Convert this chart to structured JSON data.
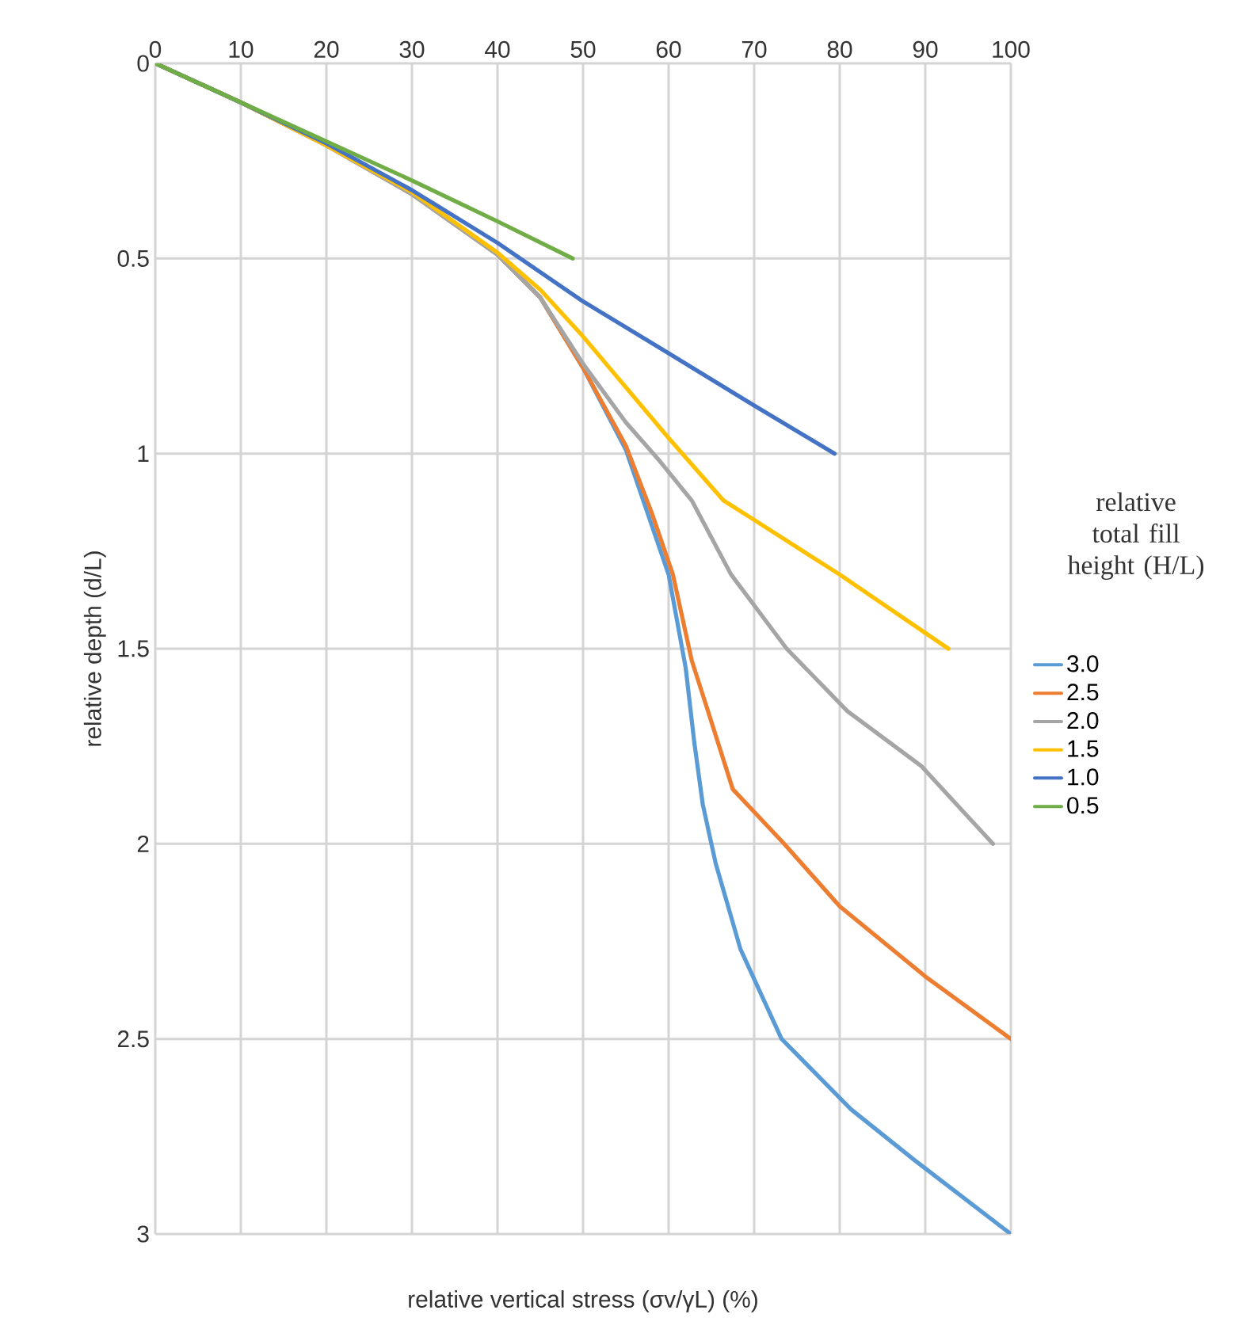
{
  "chart_data": {
    "type": "line",
    "xlabel": "relative vertical stress (σv/γL) (%)",
    "ylabel": "relative depth (d/L)",
    "legend_title": "relative total fill height (H/L)",
    "xlim": [
      0,
      100
    ],
    "xticks": [
      0,
      10,
      20,
      30,
      40,
      50,
      60,
      70,
      80,
      90,
      100
    ],
    "ylim": [
      3,
      0
    ],
    "yticks": [
      0,
      0.5,
      1,
      1.5,
      2,
      2.5,
      3
    ],
    "grid": true,
    "legend": "right",
    "marker": "none",
    "line_style": "solid",
    "series": [
      {
        "name": "3.0",
        "color": "#5b9bd5",
        "x": [
          0,
          10,
          20,
          30,
          40,
          45,
          50,
          55,
          60,
          62,
          63,
          64,
          65.5,
          68.4,
          73.2,
          81.3,
          88.7,
          100
        ],
        "values": [
          0,
          0.1,
          0.21,
          0.335,
          0.49,
          0.6,
          0.78,
          0.99,
          1.31,
          1.55,
          1.74,
          1.9,
          2.05,
          2.27,
          2.5,
          2.68,
          2.81,
          3.0
        ]
      },
      {
        "name": "2.5",
        "color": "#ed7d31",
        "x": [
          0,
          10,
          20,
          30,
          40,
          45,
          50,
          55,
          58,
          60.5,
          62.7,
          64.6,
          67.5,
          73.5,
          80,
          90,
          100
        ],
        "values": [
          0,
          0.1,
          0.21,
          0.335,
          0.49,
          0.6,
          0.78,
          0.98,
          1.15,
          1.31,
          1.53,
          1.66,
          1.86,
          2.0,
          2.16,
          2.34,
          2.5
        ]
      },
      {
        "name": "2.0",
        "color": "#a5a5a5",
        "x": [
          0,
          10,
          20,
          30,
          40,
          45,
          50,
          55,
          59,
          62.7,
          67.3,
          73.8,
          80.9,
          89.5,
          97.9
        ],
        "values": [
          0,
          0.1,
          0.21,
          0.335,
          0.49,
          0.6,
          0.77,
          0.92,
          1.02,
          1.12,
          1.31,
          1.5,
          1.66,
          1.8,
          2.0
        ]
      },
      {
        "name": "1.5",
        "color": "#ffc000",
        "x": [
          0,
          10,
          20,
          30,
          40,
          45,
          50,
          60,
          66.4,
          70,
          80,
          92.7
        ],
        "values": [
          0,
          0.1,
          0.21,
          0.33,
          0.485,
          0.58,
          0.7,
          0.96,
          1.12,
          1.17,
          1.31,
          1.5
        ]
      },
      {
        "name": "1.0",
        "color": "#4472c4",
        "x": [
          0,
          10,
          20,
          30,
          40,
          50,
          60,
          70,
          79.4
        ],
        "values": [
          0,
          0.1,
          0.205,
          0.325,
          0.46,
          0.61,
          0.743,
          0.877,
          1.0
        ]
      },
      {
        "name": "0.5",
        "color": "#70ad47",
        "x": [
          0,
          10,
          20,
          30,
          40,
          48.8
        ],
        "values": [
          0,
          0.1,
          0.2,
          0.3,
          0.405,
          0.5
        ]
      }
    ]
  }
}
